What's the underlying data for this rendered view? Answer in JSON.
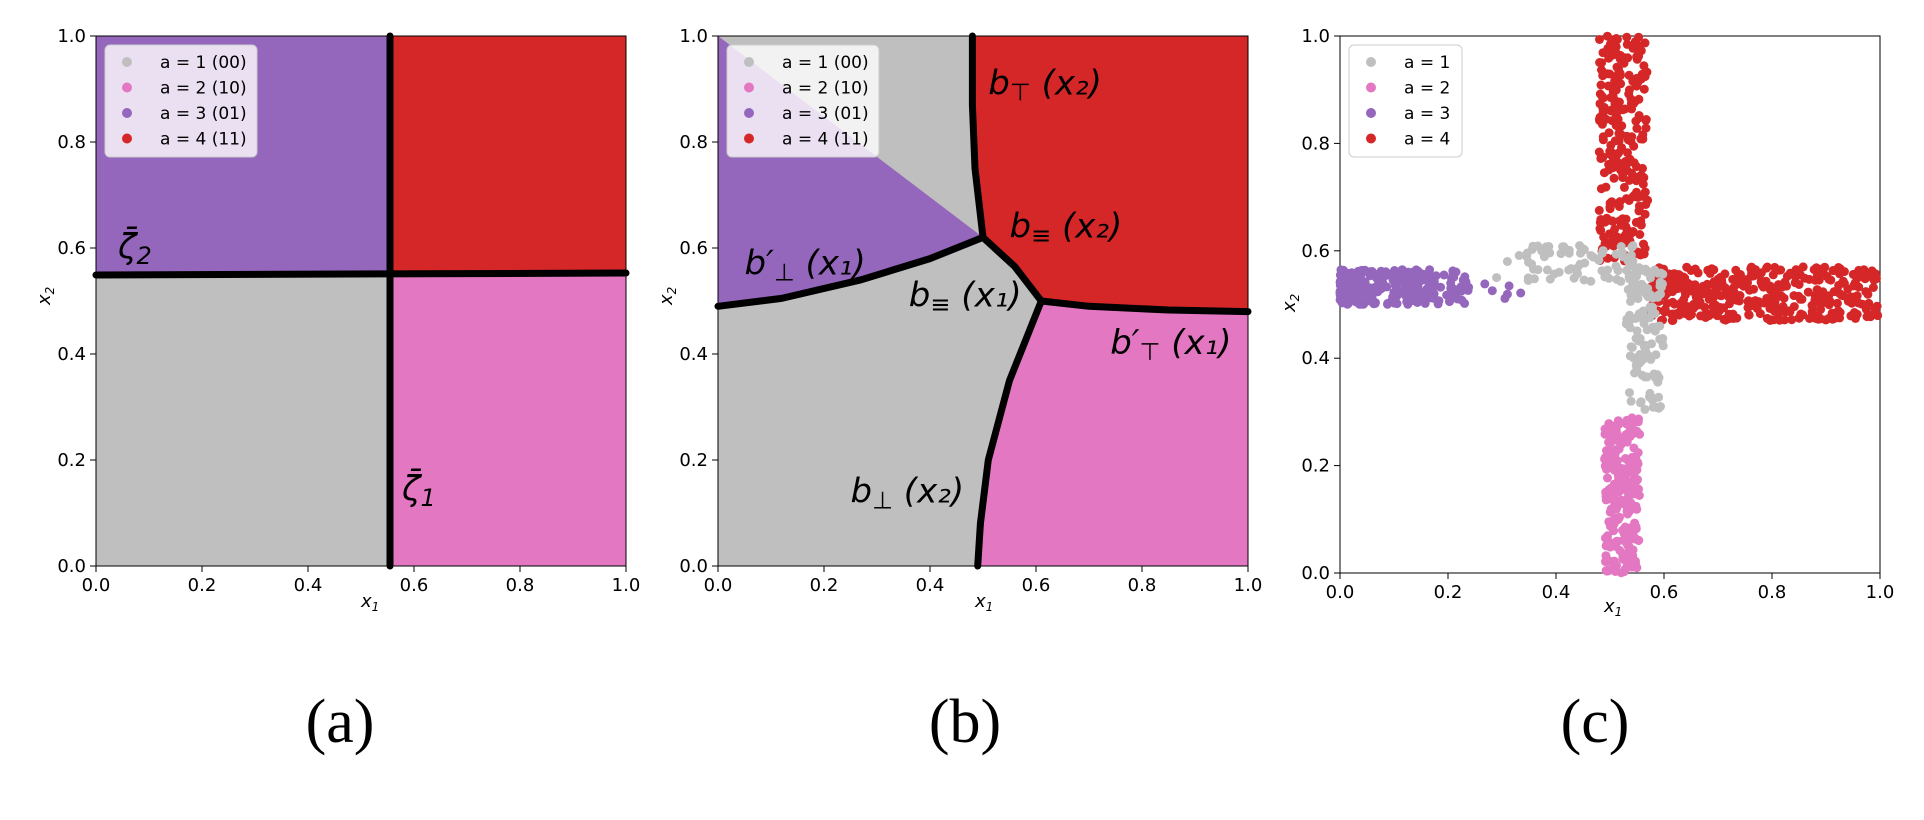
{
  "colors": {
    "a1": "#bfbfbf",
    "a2": "#e377c2",
    "a3": "#9467bd",
    "a4": "#d62728"
  },
  "chart_data": [
    {
      "type": "region",
      "caption": "(a)",
      "xlabel": "x1",
      "ylabel": "x2",
      "xlim": [
        0,
        1
      ],
      "ylim": [
        0,
        1
      ],
      "xticks": [
        "0.0",
        "0.2",
        "0.4",
        "0.6",
        "0.8",
        "1.0"
      ],
      "yticks": [
        "0.0",
        "0.2",
        "0.4",
        "0.6",
        "0.8",
        "1.0"
      ],
      "legend": [
        "a = 1 (00)",
        "a = 2 (10)",
        "a = 3 (01)",
        "a = 4 (11)"
      ],
      "legend_position": "top-left",
      "thresholds": {
        "x1": 0.55,
        "x2": 0.55
      },
      "regions": [
        {
          "action": 1,
          "x1": [
            0,
            0.55
          ],
          "x2": [
            0,
            0.55
          ]
        },
        {
          "action": 2,
          "x1": [
            0.55,
            1
          ],
          "x2": [
            0,
            0.55
          ]
        },
        {
          "action": 3,
          "x1": [
            0,
            0.55
          ],
          "x2": [
            0.55,
            1
          ]
        },
        {
          "action": 4,
          "x1": [
            0.55,
            1
          ],
          "x2": [
            0.55,
            1
          ]
        }
      ],
      "boundary_labels": [
        {
          "symbol": "ζ̄",
          "sub": "2",
          "at": [
            0.05,
            0.62
          ]
        },
        {
          "symbol": "ζ̄",
          "sub": "1",
          "at": [
            0.575,
            0.14
          ]
        }
      ]
    },
    {
      "type": "region",
      "caption": "(b)",
      "xlabel": "x1",
      "ylabel": "x2",
      "xlim": [
        0,
        1
      ],
      "ylim": [
        0,
        1
      ],
      "xticks": [
        "0.0",
        "0.2",
        "0.4",
        "0.6",
        "0.8",
        "1.0"
      ],
      "yticks": [
        "0.0",
        "0.2",
        "0.4",
        "0.6",
        "0.8",
        "1.0"
      ],
      "legend": [
        "a = 1 (00)",
        "a = 2 (10)",
        "a = 3 (01)",
        "a = 4 (11)"
      ],
      "legend_position": "top-left",
      "boundaries": {
        "b_top_x2": [
          [
            0.48,
            1.0
          ],
          [
            0.48,
            0.87
          ],
          [
            0.485,
            0.75
          ],
          [
            0.5,
            0.62
          ]
        ],
        "b_prime_perp_x1": [
          [
            0.0,
            0.49
          ],
          [
            0.12,
            0.505
          ],
          [
            0.27,
            0.54
          ],
          [
            0.4,
            0.58
          ],
          [
            0.5,
            0.62
          ]
        ],
        "b_equiv": [
          [
            0.5,
            0.62
          ],
          [
            0.56,
            0.565
          ],
          [
            0.61,
            0.5
          ]
        ],
        "b_prime_top_x1": [
          [
            0.61,
            0.5
          ],
          [
            0.7,
            0.49
          ],
          [
            0.85,
            0.483
          ],
          [
            1.0,
            0.48
          ]
        ],
        "b_perp_x2": [
          [
            0.61,
            0.5
          ],
          [
            0.55,
            0.35
          ],
          [
            0.51,
            0.2
          ],
          [
            0.495,
            0.08
          ],
          [
            0.49,
            0.0
          ]
        ]
      },
      "boundary_labels": [
        {
          "symbol": "b",
          "sub": "⊤",
          "arg": " (x₂)",
          "at": [
            0.51,
            0.89
          ]
        },
        {
          "symbol": "b",
          "sub": "≡",
          "arg": " (x₂)",
          "at": [
            0.55,
            0.62
          ]
        },
        {
          "symbol": "b′",
          "sub": "⊥",
          "arg": " (x₁)",
          "at": [
            0.05,
            0.55
          ]
        },
        {
          "symbol": "b",
          "sub": "≡",
          "arg": " (x₁)",
          "at": [
            0.36,
            0.49
          ]
        },
        {
          "symbol": "b′",
          "sub": "⊤",
          "arg": " (x₁)",
          "at": [
            0.74,
            0.4
          ]
        },
        {
          "symbol": "b",
          "sub": "⊥",
          "arg": " (x₂)",
          "at": [
            0.25,
            0.12
          ]
        }
      ]
    },
    {
      "type": "scatter",
      "caption": "(c)",
      "xlabel": "x1",
      "ylabel": "x2",
      "xlim": [
        0,
        1
      ],
      "ylim": [
        0,
        1
      ],
      "xticks": [
        "0.0",
        "0.2",
        "0.4",
        "0.6",
        "0.8",
        "1.0"
      ],
      "yticks": [
        "0.0",
        "0.2",
        "0.4",
        "0.6",
        "0.8",
        "1.0"
      ],
      "legend": [
        "a = 1",
        "a = 2",
        "a = 3",
        "a = 4"
      ],
      "legend_position": "top-left",
      "series": [
        {
          "action": 1,
          "name": "a = 1",
          "x_range": [
            0.3,
            0.6
          ],
          "y_range": [
            0.3,
            0.62
          ],
          "shape": "L from (0.3,0.56) to (0.58,0.3)"
        },
        {
          "action": 2,
          "name": "a = 2",
          "x_range": [
            0.49,
            0.56
          ],
          "y_range": [
            0.0,
            0.3
          ]
        },
        {
          "action": 3,
          "name": "a = 3",
          "x_range": [
            0.0,
            0.35
          ],
          "y_range": [
            0.49,
            0.57
          ]
        },
        {
          "action": 4,
          "name": "a = 4",
          "x_range": [
            0.48,
            1.0
          ],
          "y_range": [
            0.47,
            1.0
          ],
          "shape": "vertical arm x1≈0.52 plus horizontal arm x2≈0.52"
        }
      ]
    }
  ]
}
